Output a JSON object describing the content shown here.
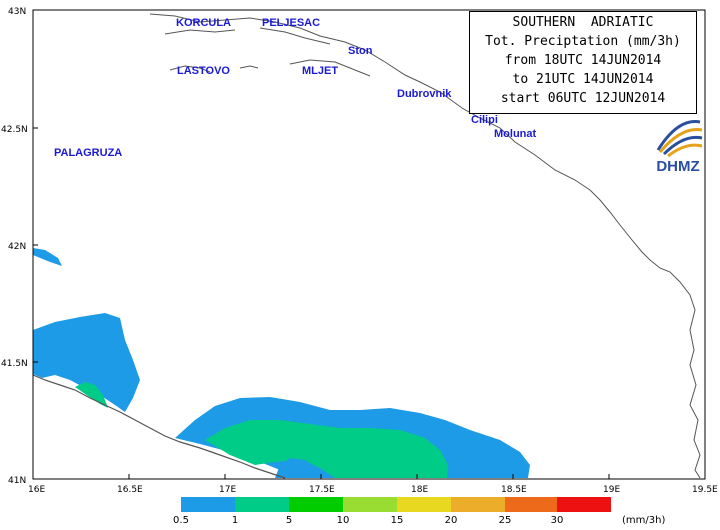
{
  "info": {
    "line1": "SOUTHERN  ADRIATIC",
    "line2": "Tot. Preciptation (mm/3h)",
    "line3": "from 18UTC 14JUN2014",
    "line4": "to 21UTC 14JUN2014",
    "line5": "start 06UTC 12JUN2014"
  },
  "logo": {
    "text": "DHMZ"
  },
  "axes": {
    "lat_labels": [
      "43N",
      "42.5N",
      "42N",
      "41.5N",
      "41N"
    ],
    "lon_labels": [
      "16E",
      "16.5E",
      "17E",
      "17.5E",
      "18E",
      "18.5E",
      "19E",
      "19.5E"
    ]
  },
  "places": [
    {
      "name": "KORCULA"
    },
    {
      "name": "PELJESAC"
    },
    {
      "name": "Ston"
    },
    {
      "name": "LASTOVO"
    },
    {
      "name": "MLJET"
    },
    {
      "name": "Dubrovnik"
    },
    {
      "name": "Cilipi"
    },
    {
      "name": "Molunat"
    },
    {
      "name": "PALAGRUZA"
    }
  ],
  "legend": {
    "units": "(mm/3h)",
    "labels": [
      "0.5",
      "1",
      "5",
      "10",
      "15",
      "20",
      "25",
      "30"
    ],
    "colors": [
      "#1e9be6",
      "#00cc88",
      "#00cc00",
      "#99dd33",
      "#e8d820",
      "#ecae2a",
      "#ec6a1a",
      "#ee1111"
    ]
  }
}
